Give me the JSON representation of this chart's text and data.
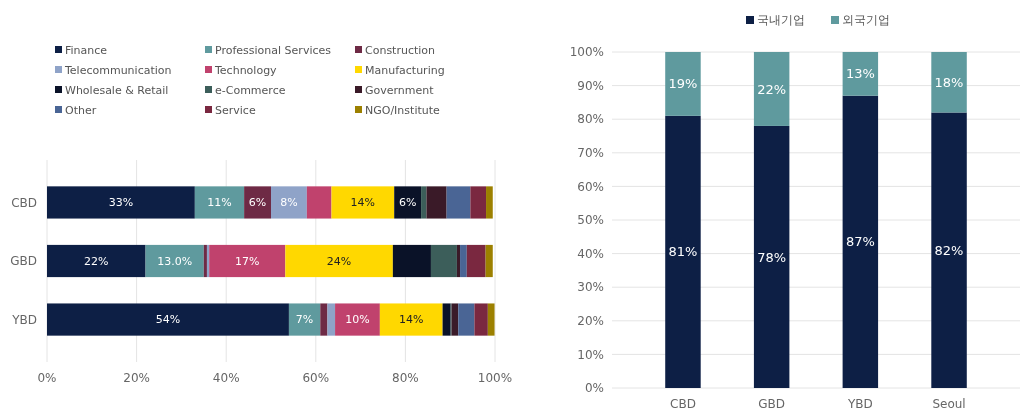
{
  "chart_data": [
    {
      "type": "bar",
      "orientation": "horizontal",
      "stacked": true,
      "categories": [
        "CBD",
        "GBD",
        "YBD"
      ],
      "xlim": [
        0,
        100
      ],
      "xticks": [
        {
          "value": 0,
          "label": "0%"
        },
        {
          "value": 20,
          "label": "20%"
        },
        {
          "value": 40,
          "label": "40%"
        },
        {
          "value": 60,
          "label": "60%"
        },
        {
          "value": 80,
          "label": "80%"
        },
        {
          "value": 100,
          "label": "100%"
        }
      ],
      "grid": "x",
      "legend": "top",
      "series": [
        {
          "name": "Finance",
          "color": "#0d1f45",
          "values": [
            33,
            22,
            54
          ],
          "value_labels": [
            "33%",
            "22%",
            "54%"
          ]
        },
        {
          "name": "Professional Services",
          "color": "#5f9a9e",
          "values": [
            11,
            13.0,
            7
          ],
          "value_labels": [
            "11%",
            "13.0%",
            "7%"
          ]
        },
        {
          "name": "Construction",
          "color": "#6e2a45",
          "values": [
            6,
            0.7,
            1.6
          ],
          "value_labels": [
            "6%",
            null,
            null
          ]
        },
        {
          "name": "Telecommunication",
          "color": "#8fa3c8",
          "values": [
            8,
            0.5,
            1.7
          ],
          "value_labels": [
            "8%",
            null,
            null
          ]
        },
        {
          "name": "Technology",
          "color": "#c0426d",
          "values": [
            5.5,
            17,
            10
          ],
          "value_labels": [
            null,
            "17%",
            "10%"
          ]
        },
        {
          "name": "Manufacturing",
          "color": "#ffd800",
          "values": [
            14,
            24,
            14
          ],
          "value_labels": [
            "14%",
            "24%",
            "14%"
          ]
        },
        {
          "name": "Wholesale & Retail",
          "color": "#0a1228",
          "values": [
            6,
            8.5,
            1.8
          ],
          "value_labels": [
            "6%",
            null,
            null
          ]
        },
        {
          "name": "e-Commerce",
          "color": "#3c5e5a",
          "values": [
            1.2,
            5.8,
            0.2
          ]
        },
        {
          "name": "Government",
          "color": "#3a1a28",
          "values": [
            4.5,
            0.7,
            1.5
          ]
        },
        {
          "name": "Other",
          "color": "#4a6595",
          "values": [
            5.3,
            1.5,
            3.6
          ]
        },
        {
          "name": "Service",
          "color": "#7a2840",
          "values": [
            3.5,
            4.2,
            3
          ]
        },
        {
          "name": "NGO/Institute",
          "color": "#9c8000",
          "values": [
            1.5,
            1.6,
            1.5
          ]
        }
      ]
    },
    {
      "type": "bar",
      "stacked": true,
      "categories": [
        "CBD",
        "GBD",
        "YBD",
        "Seoul"
      ],
      "ylim": [
        0,
        100
      ],
      "yticks": [
        {
          "value": 0,
          "label": "0%"
        },
        {
          "value": 10,
          "label": "10%"
        },
        {
          "value": 20,
          "label": "20%"
        },
        {
          "value": 30,
          "label": "30%"
        },
        {
          "value": 40,
          "label": "40%"
        },
        {
          "value": 50,
          "label": "50%"
        },
        {
          "value": 60,
          "label": "60%"
        },
        {
          "value": 70,
          "label": "70%"
        },
        {
          "value": 80,
          "label": "80%"
        },
        {
          "value": 90,
          "label": "90%"
        },
        {
          "value": 100,
          "label": "100%"
        }
      ],
      "grid": "y",
      "legend": "top",
      "series": [
        {
          "name": "국내기업",
          "color": "#0d1f45",
          "values": [
            81,
            78,
            87,
            82
          ],
          "value_labels": [
            "81%",
            "78%",
            "87%",
            "82%"
          ]
        },
        {
          "name": "외국기업",
          "color": "#5f9a9e",
          "values": [
            19,
            22,
            13,
            18
          ],
          "value_labels": [
            "19%",
            "22%",
            "13%",
            "18%"
          ]
        }
      ]
    }
  ]
}
